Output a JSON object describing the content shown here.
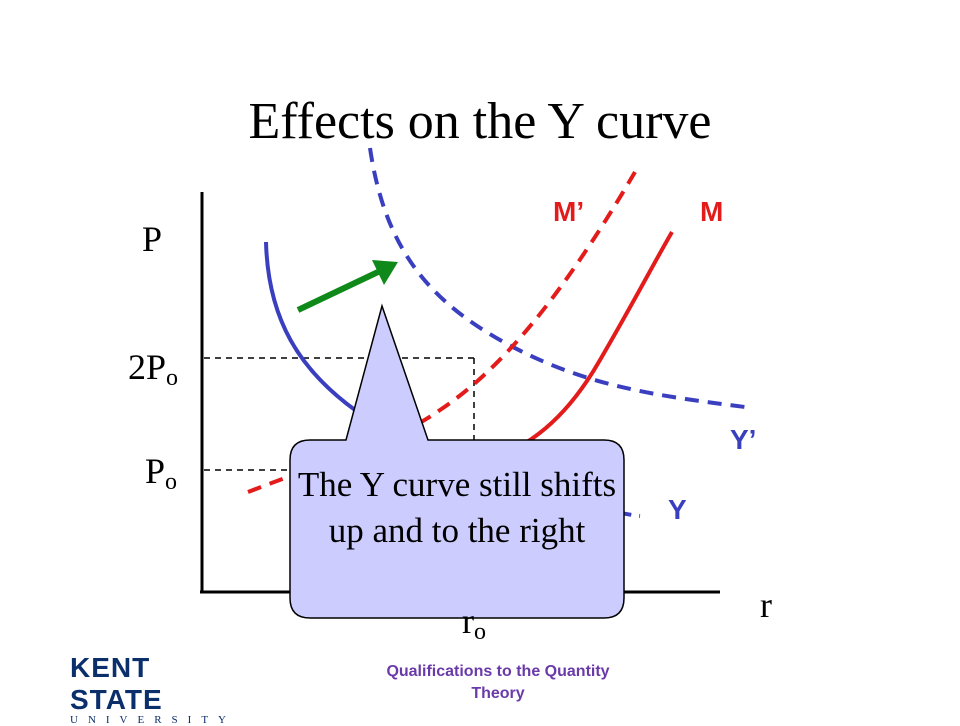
{
  "slide": {
    "title": "Effects on the Y curve",
    "footer_line1": "Qualifications to the Quantity",
    "footer_line2": "Theory"
  },
  "axes": {
    "y_label": "P",
    "x_label": "r",
    "y_tick_2p_main": "2P",
    "y_tick_2p_sub": "o",
    "y_tick_p_main": "P",
    "y_tick_p_sub": "o",
    "x_tick_main": "r",
    "x_tick_sub": "o"
  },
  "curves": {
    "m_prime": "M’",
    "m": "M",
    "y_prime": "Y’",
    "y": "Y"
  },
  "callout": {
    "text": "The Y curve still shifts up and to the right"
  },
  "logo": {
    "main": "KENT STATE",
    "sub": "UNIVERSITY"
  },
  "colors": {
    "y_curve": "#3a3fc0",
    "m_curve": "#e41b1b",
    "arrow": "#0f8a1a",
    "callout_fill": "#ccccff",
    "footer": "#6a3aa8",
    "logo": "#0b2f6b"
  }
}
